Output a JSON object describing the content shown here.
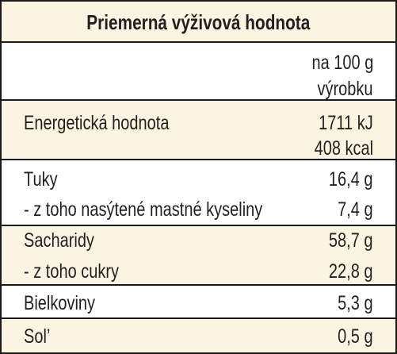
{
  "header": {
    "title": "Priemerná výživová hodnota"
  },
  "table": {
    "rows": [
      {
        "labels": [],
        "values": [
          "na 100 g",
          "výrobku"
        ]
      },
      {
        "labels": [
          "Energetická hodnota"
        ],
        "values": [
          "1711 kJ",
          "408 kcal"
        ]
      },
      {
        "labels": [
          "Tuky",
          "- z toho nasýtené mastné kyseliny"
        ],
        "values": [
          "16,4 g",
          "7,4 g"
        ]
      },
      {
        "labels": [
          "Sacharidy",
          "- z toho cukry"
        ],
        "values": [
          "58,7 g",
          "22,8 g"
        ]
      },
      {
        "labels": [
          "Bielkoviny"
        ],
        "values": [
          "5,3 g"
        ]
      },
      {
        "labels": [
          "Sol’"
        ],
        "values": [
          "0,5 g"
        ]
      }
    ]
  }
}
